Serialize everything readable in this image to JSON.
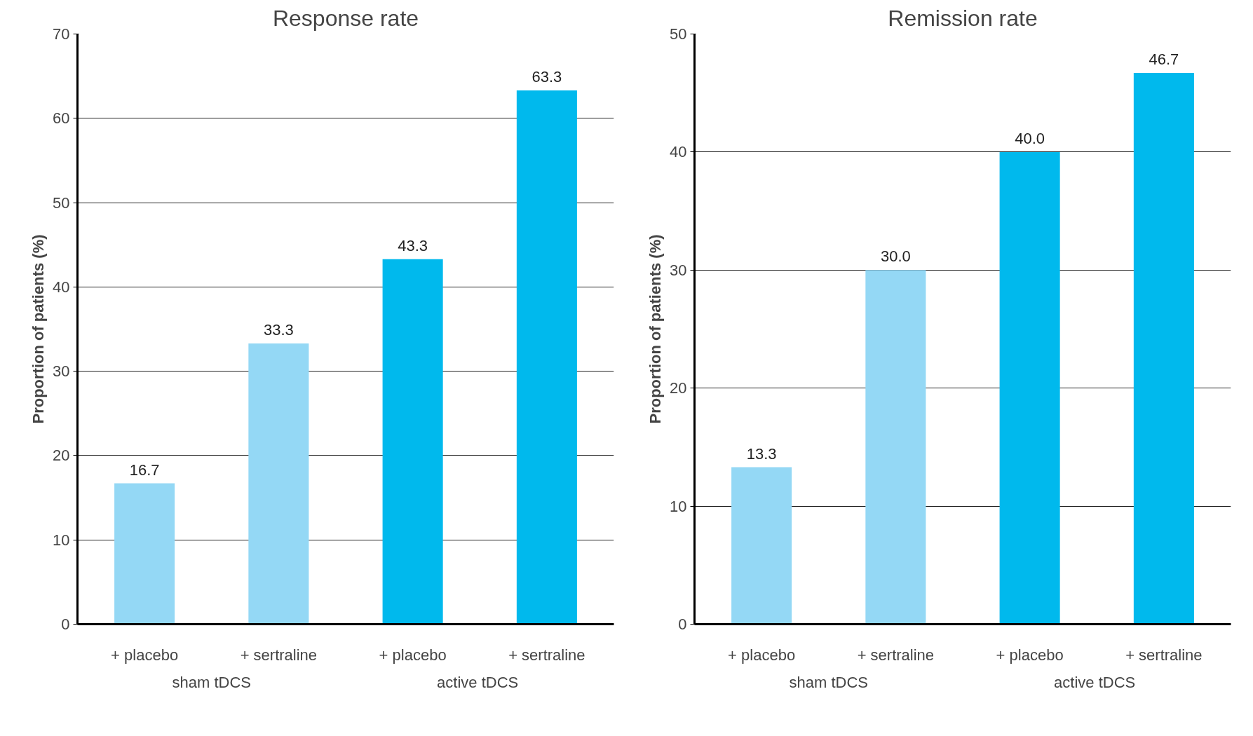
{
  "chart_data": [
    {
      "type": "bar",
      "title": "Response rate",
      "ylabel": "Proportion of patients (%)",
      "categories": [
        "+ placebo",
        "+ sertraline",
        "+ placebo",
        "+ sertraline"
      ],
      "values": [
        16.7,
        33.3,
        43.3,
        63.3
      ],
      "colors": [
        "#94d8f5",
        "#94d8f5",
        "#00b9ed",
        "#00b9ed"
      ],
      "ylim": [
        0,
        70
      ],
      "yticks": [
        0,
        10,
        20,
        30,
        40,
        50,
        60,
        70
      ],
      "grid": "y",
      "data_labels": true,
      "value_labels": [
        "16.7",
        "33.3",
        "43.3",
        "63.3"
      ],
      "annotations": [
        "sham tDCS",
        "active  tDCS"
      ]
    },
    {
      "type": "bar",
      "title": "Remission rate",
      "ylabel": "Proportion of patients (%)",
      "categories": [
        "+ placebo",
        "+ sertraline",
        "+ placebo",
        "+ sertraline"
      ],
      "values": [
        13.3,
        30.0,
        40.0,
        46.7
      ],
      "colors": [
        "#94d8f5",
        "#94d8f5",
        "#00b9ed",
        "#00b9ed"
      ],
      "ylim": [
        0,
        50
      ],
      "yticks": [
        0,
        10,
        20,
        30,
        40,
        50
      ],
      "grid": "y",
      "data_labels": true,
      "value_labels": [
        "13.3",
        "30.0",
        "40.0",
        "46.7"
      ],
      "annotations": [
        "sham tDCS",
        "active  tDCS"
      ]
    }
  ]
}
